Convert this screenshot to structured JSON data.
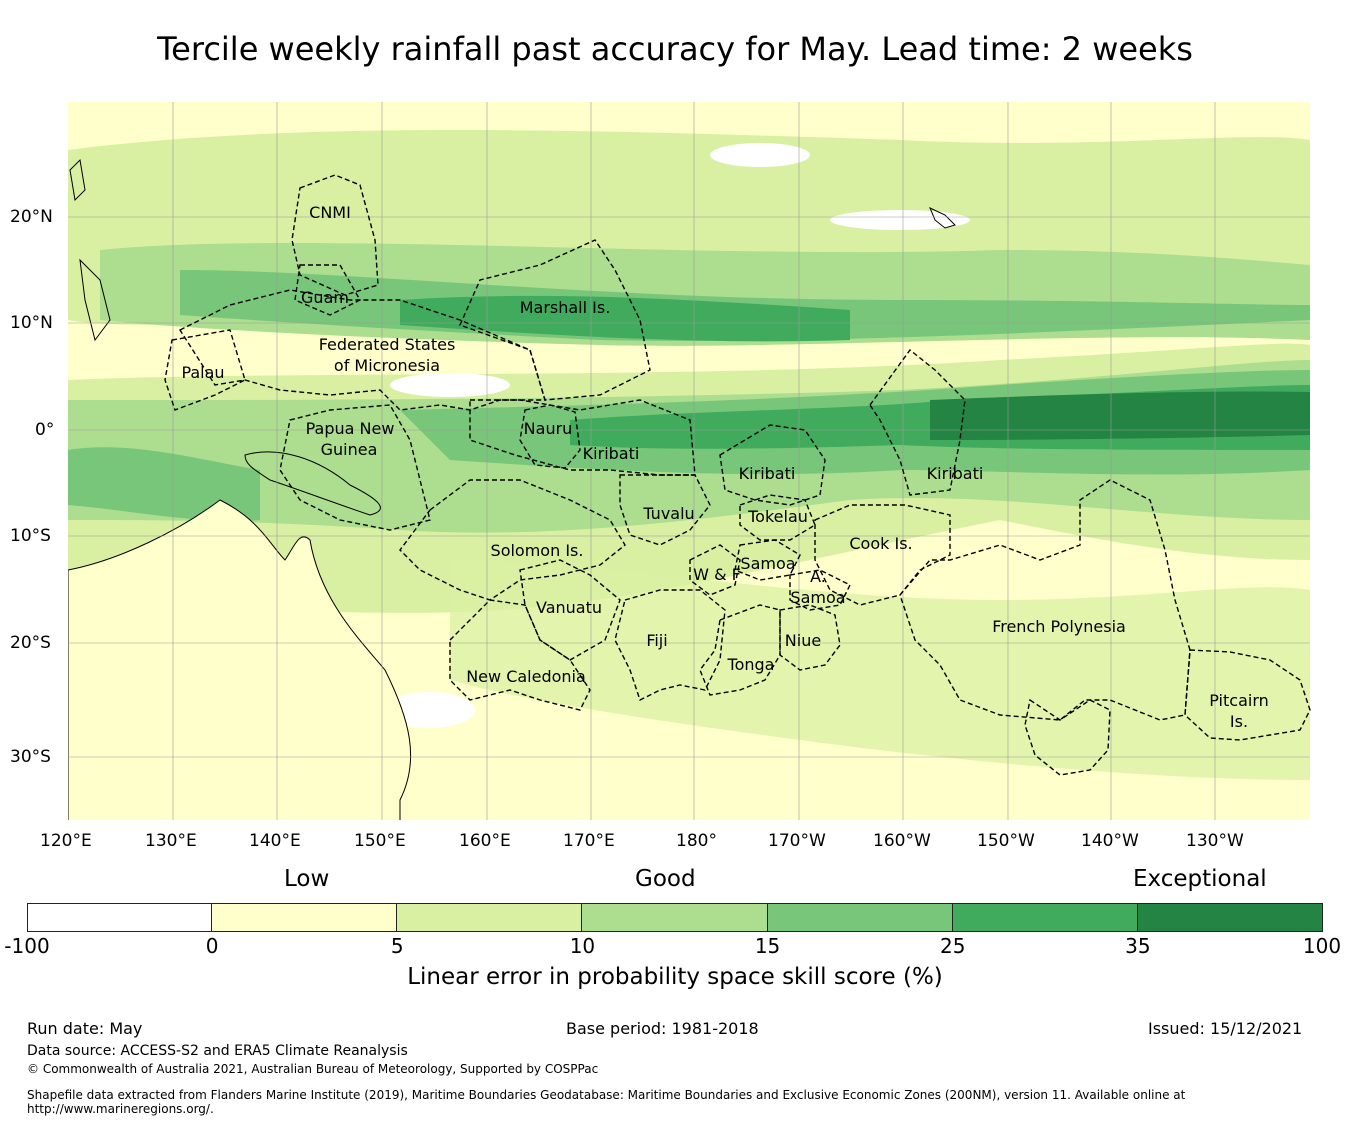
{
  "title": "Tercile weekly rainfall past accuracy for May. Lead time: 2 weeks",
  "lon_ticks": [
    "120°E",
    "130°E",
    "140°E",
    "150°E",
    "160°E",
    "170°E",
    "180°",
    "170°W",
    "160°W",
    "150°W",
    "140°W",
    "130°W"
  ],
  "lat_ticks": [
    "20°N",
    "10°N",
    "0°",
    "10°S",
    "20°S",
    "30°S"
  ],
  "regions": [
    {
      "name": "CNMI"
    },
    {
      "name": "Guam"
    },
    {
      "name": "Marshall Is."
    },
    {
      "name": "Federated States"
    },
    {
      "name": "of Micronesia"
    },
    {
      "name": "Palau"
    },
    {
      "name": "Nauru"
    },
    {
      "name": "Papua New"
    },
    {
      "name": "Guinea"
    },
    {
      "name": "Kiribati"
    },
    {
      "name": "Kiribati"
    },
    {
      "name": "Kiribati"
    },
    {
      "name": "Tuvalu"
    },
    {
      "name": "Tokelau"
    },
    {
      "name": "Solomon Is."
    },
    {
      "name": "Cook Is."
    },
    {
      "name": "Samoa"
    },
    {
      "name": "W & F"
    },
    {
      "name": "A."
    },
    {
      "name": "Samoa"
    },
    {
      "name": "Vanuatu"
    },
    {
      "name": "French Polynesia"
    },
    {
      "name": "Fiji"
    },
    {
      "name": "Niue"
    },
    {
      "name": "Tonga"
    },
    {
      "name": "New Caledonia"
    },
    {
      "name": "Pitcairn"
    },
    {
      "name": "Is."
    }
  ],
  "legend": {
    "categories": [
      "Low",
      "Good",
      "Exceptional"
    ],
    "ticks": [
      "-100",
      "0",
      "5",
      "10",
      "15",
      "25",
      "35",
      "100"
    ],
    "colors": [
      "#ffffff",
      "#ffffcc",
      "#d9f0a3",
      "#addd8e",
      "#78c679",
      "#41ab5d",
      "#238443"
    ],
    "label": "Linear error in probability space skill score (%)"
  },
  "footer": {
    "run_date": "Run date: May",
    "base_period": "Base period: 1981-2018",
    "issued": "Issued: 15/12/2021",
    "source": "Data source: ACCESS-S2 and ERA5 Climate Reanalysis",
    "copyright": "© Commonwealth of Australia 2021, Australian Bureau of Meteorology, Supported by COSPPac",
    "shapefile": "Shapefile data extracted from Flanders Marine Institute (2019), Maritime Boundaries Geodatabase: Maritime Boundaries and Exclusive Economic Zones (200NM), version 11. Available online at http://www.marineregions.org/."
  }
}
